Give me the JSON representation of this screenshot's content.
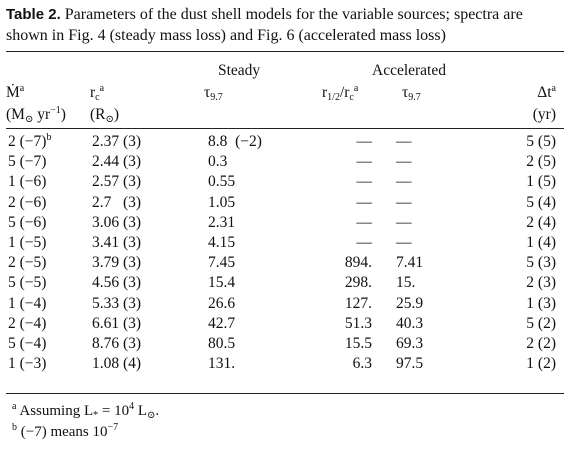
{
  "caption": {
    "label": "Table 2.",
    "text": "Parameters of the dust shell models for the variable sources; spectra are shown in Fig. 4 (steady mass loss) and Fig. 6 (accelerated mass loss)"
  },
  "table": {
    "group_row": [
      null,
      null,
      "Steady",
      null,
      "Accelerated",
      null
    ],
    "header": [
      [
        [
          {
            "text": "Ṁ"
          },
          {
            "text": "a",
            "style": "sup"
          }
        ],
        [
          {
            "text": "(M"
          },
          {
            "text": "⊙",
            "style": "sub"
          },
          {
            "text": " yr"
          },
          {
            "text": "−1",
            "style": "sup"
          },
          {
            "text": ")"
          }
        ]
      ],
      [
        [
          {
            "text": "r"
          },
          {
            "text": "c",
            "style": "sub"
          },
          {
            "text": "a",
            "style": "sup"
          }
        ],
        [
          {
            "text": "(R"
          },
          {
            "text": "⊙",
            "style": "sub"
          },
          {
            "text": ")"
          }
        ]
      ],
      [
        [
          {
            "text": "τ"
          },
          {
            "text": "9.7",
            "style": "sub"
          }
        ]
      ],
      [
        [
          {
            "text": "r"
          },
          {
            "text": "1/2",
            "style": "sub"
          },
          {
            "text": "/r"
          },
          {
            "text": "c",
            "style": "sub"
          },
          {
            "text": "a",
            "style": "sup"
          }
        ]
      ],
      [
        [
          {
            "text": "τ"
          },
          {
            "text": "9.7",
            "style": "sub"
          }
        ]
      ],
      [
        [
          {
            "text": "Δt"
          },
          {
            "text": "a",
            "style": "sup"
          }
        ],
        [
          {
            "text": "(yr)"
          }
        ]
      ]
    ],
    "rows": [
      [
        [
          {
            "text": "2 (−7)"
          },
          {
            "text": "b",
            "style": "sup"
          }
        ],
        "2.37 (3)",
        "8.8  (−2)",
        "—",
        "—",
        "5 (5)"
      ],
      [
        "5 (−7)",
        "2.44 (3)",
        "0.3",
        "—",
        "—",
        "2 (5)"
      ],
      [
        "1 (−6)",
        "2.57 (3)",
        "0.55",
        "—",
        "—",
        "1 (5)"
      ],
      [
        "2 (−6)",
        "2.7   (3)",
        "1.05",
        "—",
        "—",
        "5 (4)"
      ],
      [
        "5 (−6)",
        "3.06 (3)",
        "2.31",
        "—",
        "—",
        "2 (4)"
      ],
      [
        "1 (−5)",
        "3.41 (3)",
        "4.15",
        "—",
        "—",
        "1 (4)"
      ],
      [
        "2 (−5)",
        "3.79 (3)",
        "7.45",
        "894.",
        "7.41",
        "5 (3)"
      ],
      [
        "5 (−5)",
        "4.56 (3)",
        "15.4",
        "298.",
        "15.",
        "2 (3)"
      ],
      [
        "1 (−4)",
        "5.33 (3)",
        "26.6",
        "127.",
        "25.9",
        "1 (3)"
      ],
      [
        "2 (−4)",
        "6.61 (3)",
        "42.7",
        "51.3",
        "40.3",
        "5 (2)"
      ],
      [
        "5 (−4)",
        "8.76 (3)",
        "80.5",
        "15.5",
        "69.3",
        "2 (2)"
      ],
      [
        "1 (−3)",
        "1.08 (4)",
        "131.",
        "6.3",
        "97.5",
        "1 (2)"
      ]
    ]
  },
  "footnotes": [
    [
      {
        "text": "a",
        "style": "sup"
      },
      {
        "text": " Assuming L"
      },
      {
        "text": "*",
        "style": "sub"
      },
      {
        "text": " = 10"
      },
      {
        "text": "4",
        "style": "sup"
      },
      {
        "text": " L"
      },
      {
        "text": "⊙",
        "style": "sub"
      },
      {
        "text": "."
      }
    ],
    [
      {
        "text": "b",
        "style": "sup"
      },
      {
        "text": " (−7) means 10"
      },
      {
        "text": "−7",
        "style": "sup"
      }
    ]
  ]
}
